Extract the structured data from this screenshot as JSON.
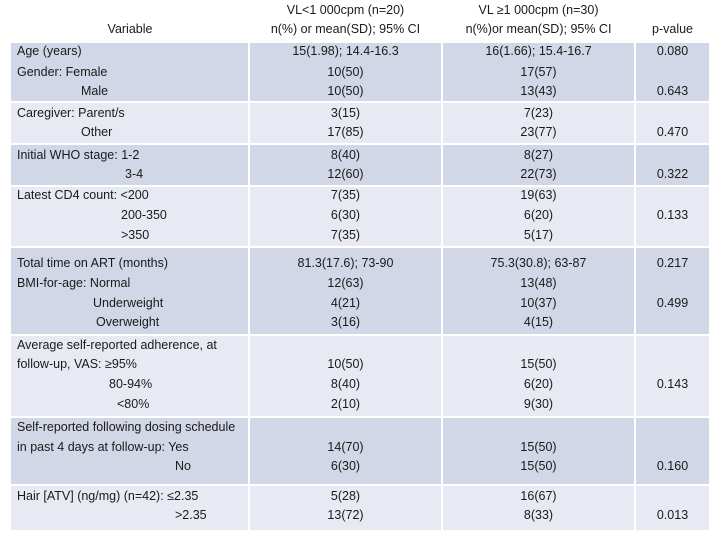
{
  "header": {
    "variable": "Variable",
    "group_a_line1": "VL<1 000cpm (n=20)",
    "group_a_line2": "n(%) or mean(SD); 95% CI",
    "group_b_line1": "VL ≥1 000cpm (n=30)",
    "group_b_line2": "n(%)or mean(SD); 95% CI",
    "p_value": "p-value"
  },
  "rows": [
    {
      "lines": [
        "Age (years)",
        "Gender:  Female",
        "Male"
      ],
      "a": [
        "15(1.98); 14.4-16.3",
        "10(50)",
        "10(50)"
      ],
      "b": [
        "16(1.66); 15.4-16.7",
        "17(57)",
        "13(43)"
      ],
      "p": [
        "0.080",
        "0.643"
      ]
    },
    {
      "lines": [
        "Caregiver: Parent/s",
        "Other"
      ],
      "a": [
        "3(15)",
        "17(85)"
      ],
      "b": [
        "7(23)",
        "23(77)"
      ],
      "p": [
        "0.470"
      ]
    },
    {
      "lines": [
        "Initial WHO stage: 1-2",
        "3-4"
      ],
      "a": [
        "8(40)",
        "12(60)"
      ],
      "b": [
        "8(27)",
        "22(73)"
      ],
      "p": [
        "0.322"
      ]
    },
    {
      "lines": [
        "Latest CD4 count: <200",
        "200-350",
        ">350"
      ],
      "a": [
        "7(35)",
        "6(30)",
        "7(35)"
      ],
      "b": [
        "19(63)",
        "6(20)",
        "5(17)"
      ],
      "p": [
        "0.133"
      ]
    },
    {
      "lines": [
        "Total time on ART (months)",
        "BMI-for-age:  Normal",
        "Underweight",
        "Overweight"
      ],
      "a": [
        "81.3(17.6); 73-90",
        "12(63)",
        "4(21)",
        "3(16)"
      ],
      "b": [
        "75.3(30.8); 63-87",
        "13(48)",
        "10(37)",
        "4(15)"
      ],
      "p": [
        "0.217",
        "0.499"
      ]
    },
    {
      "lines": [
        "Average self-reported adherence, at",
        "follow-up, VAS:  ≥95%",
        "80-94%",
        "<80%"
      ],
      "a": [
        "10(50)",
        "8(40)",
        "2(10)"
      ],
      "b": [
        "15(50)",
        "6(20)",
        "9(30)"
      ],
      "p": [
        "0.143"
      ]
    },
    {
      "lines": [
        "Self-reported following dosing schedule",
        "in past 4  days at follow-up: Yes",
        "No"
      ],
      "a": [
        "14(70)",
        "6(30)"
      ],
      "b": [
        "15(50)",
        "15(50)"
      ],
      "p": [
        "0.160"
      ]
    },
    {
      "lines": [
        "Hair [ATV] (ng/mg) (n=42):  ≤2.35",
        ">2.35"
      ],
      "a": [
        "5(28)",
        "13(72)"
      ],
      "b": [
        "16(67)",
        "8(33)"
      ],
      "p": [
        "0.013"
      ]
    }
  ]
}
